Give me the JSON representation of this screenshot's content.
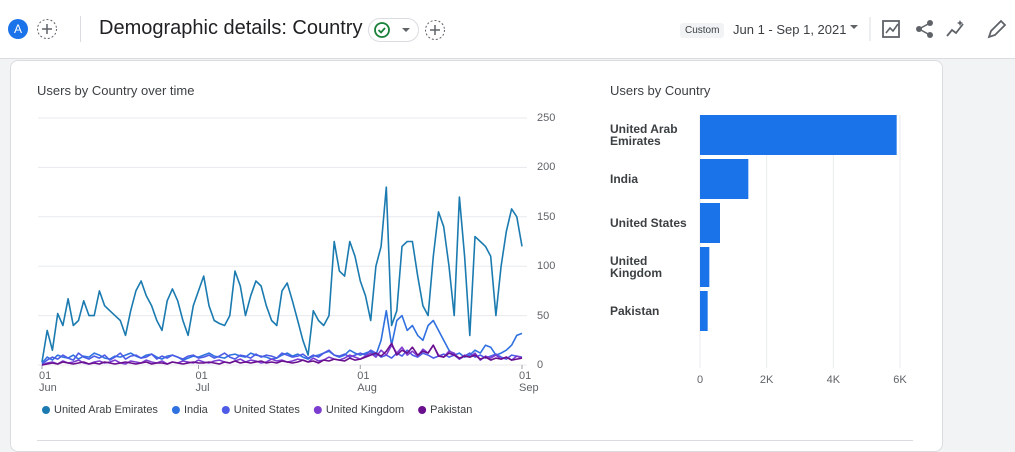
{
  "header": {
    "avatar": "A",
    "title": "Demographic details: Country",
    "date_badge": "Custom",
    "date_range": "Jun 1 - Sep 1, 2021"
  },
  "chart_data": [
    {
      "type": "line",
      "title": "Users by Country over time",
      "categories": [
        "01\nJun",
        null,
        null,
        null,
        null,
        null,
        null,
        null,
        null,
        null,
        null,
        null,
        null,
        null,
        null,
        null,
        null,
        null,
        null,
        null,
        null,
        null,
        null,
        null,
        null,
        null,
        null,
        null,
        null,
        null,
        "01\nJul",
        null,
        null,
        null,
        null,
        null,
        null,
        null,
        null,
        null,
        null,
        null,
        null,
        null,
        null,
        null,
        null,
        null,
        null,
        null,
        null,
        null,
        null,
        null,
        null,
        null,
        null,
        null,
        null,
        null,
        null,
        "01\nAug",
        null,
        null,
        null,
        null,
        null,
        null,
        null,
        null,
        null,
        null,
        null,
        null,
        null,
        null,
        null,
        null,
        null,
        null,
        null,
        null,
        null,
        null,
        null,
        null,
        null,
        null,
        null,
        null,
        null,
        null,
        "01\nSep"
      ],
      "series": [
        {
          "name": "United Arab Emirates",
          "color": "#1b7bb0",
          "values": [
            3,
            35,
            15,
            52,
            40,
            67,
            40,
            45,
            65,
            50,
            50,
            75,
            60,
            55,
            50,
            45,
            30,
            55,
            75,
            85,
            70,
            60,
            45,
            35,
            65,
            77,
            65,
            45,
            30,
            60,
            75,
            90,
            60,
            45,
            42,
            40,
            50,
            95,
            80,
            50,
            70,
            85,
            80,
            60,
            45,
            40,
            75,
            83,
            65,
            45,
            25,
            10,
            55,
            45,
            40,
            50,
            125,
            95,
            90,
            125,
            110,
            85,
            70,
            45,
            100,
            120,
            180,
            40,
            55,
            120,
            125,
            125,
            90,
            60,
            50,
            110,
            155,
            140,
            100,
            50,
            170,
            110,
            30,
            130,
            125,
            120,
            110,
            50,
            100,
            135,
            158,
            150,
            120
          ]
        },
        {
          "name": "India",
          "color": "#3071e0",
          "values": [
            2,
            8,
            5,
            10,
            8,
            7,
            10,
            6,
            9,
            8,
            12,
            10,
            7,
            6,
            9,
            8,
            10,
            12,
            9,
            7,
            10,
            11,
            8,
            6,
            9,
            10,
            8,
            5,
            7,
            9,
            8,
            10,
            12,
            9,
            8,
            7,
            10,
            11,
            9,
            8,
            12,
            10,
            9,
            8,
            6,
            7,
            10,
            12,
            9,
            11,
            8,
            6,
            9,
            10,
            12,
            14,
            10,
            8,
            10,
            15,
            12,
            10,
            12,
            14,
            10,
            25,
            55,
            20,
            45,
            50,
            35,
            40,
            30,
            25,
            40,
            45,
            35,
            25,
            15,
            10,
            12,
            8,
            10,
            15,
            12,
            20,
            18,
            10,
            12,
            15,
            20,
            30,
            32
          ]
        },
        {
          "name": "United States",
          "color": "#4d5be6",
          "values": [
            1,
            5,
            8,
            6,
            10,
            7,
            5,
            12,
            8,
            6,
            9,
            7,
            10,
            5,
            8,
            12,
            6,
            9,
            10,
            7,
            8,
            11,
            6,
            9,
            7,
            10,
            8,
            6,
            9,
            10,
            7,
            8,
            10,
            7,
            9,
            12,
            8,
            6,
            10,
            9,
            7,
            11,
            8,
            10,
            9,
            7,
            12,
            10,
            8,
            9,
            11,
            7,
            10,
            8,
            12,
            15,
            10,
            9,
            11,
            8,
            10,
            12,
            10,
            15,
            12,
            8,
            10,
            7,
            12,
            9,
            15,
            10,
            8,
            12,
            10,
            7,
            9,
            11,
            8,
            10,
            6,
            9,
            12,
            8,
            10,
            7,
            9,
            11,
            8,
            6,
            10,
            9,
            8
          ]
        },
        {
          "name": "United Kingdom",
          "color": "#7d3cd0",
          "values": [
            0,
            2,
            3,
            1,
            4,
            2,
            3,
            5,
            2,
            1,
            3,
            4,
            2,
            3,
            5,
            2,
            1,
            4,
            3,
            2,
            5,
            3,
            2,
            4,
            1,
            3,
            2,
            4,
            3,
            2,
            5,
            3,
            2,
            4,
            5,
            3,
            2,
            4,
            6,
            3,
            5,
            4,
            2,
            3,
            6,
            4,
            5,
            3,
            4,
            6,
            5,
            3,
            7,
            4,
            5,
            8,
            6,
            5,
            7,
            10,
            8,
            6,
            9,
            12,
            8,
            15,
            10,
            20,
            12,
            18,
            10,
            14,
            9,
            16,
            12,
            20,
            10,
            8,
            14,
            12,
            6,
            10,
            8,
            12,
            5,
            9,
            7,
            10,
            6,
            8,
            5,
            9,
            7
          ]
        },
        {
          "name": "Pakistan",
          "color": "#6a0f8e",
          "values": [
            0,
            1,
            2,
            1,
            3,
            2,
            1,
            2,
            3,
            1,
            2,
            1,
            3,
            2,
            1,
            2,
            3,
            2,
            1,
            2,
            3,
            1,
            2,
            2,
            1,
            3,
            2,
            1,
            2,
            3,
            2,
            2,
            3,
            2,
            1,
            3,
            2,
            4,
            2,
            3,
            2,
            3,
            4,
            2,
            3,
            2,
            4,
            3,
            2,
            3,
            5,
            3,
            4,
            2,
            5,
            4,
            6,
            5,
            4,
            7,
            5,
            6,
            8,
            10,
            12,
            9,
            14,
            22,
            10,
            15,
            12,
            18,
            10,
            14,
            12,
            20,
            9,
            8,
            12,
            10,
            7,
            9,
            8,
            10,
            6,
            8,
            5,
            7,
            6,
            8,
            5,
            6,
            7
          ]
        }
      ],
      "ylim": [
        0,
        250
      ],
      "yticks": [
        0,
        50,
        100,
        150,
        200,
        250
      ],
      "grid": true
    },
    {
      "type": "hbar",
      "title": "Users by Country",
      "categories": [
        "United Arab\nEmirates",
        "India",
        "United States",
        "United\nKingdom",
        "Pakistan"
      ],
      "values": [
        5900,
        1450,
        600,
        280,
        230
      ],
      "color": "#1a73e8",
      "xlim": [
        0,
        7000
      ],
      "xticks": [
        0,
        {
          "value": 2000,
          "label": "2K"
        },
        {
          "value": 4000,
          "label": "4K"
        },
        {
          "value": 6000,
          "label": "6K"
        }
      ],
      "grid": true
    }
  ]
}
